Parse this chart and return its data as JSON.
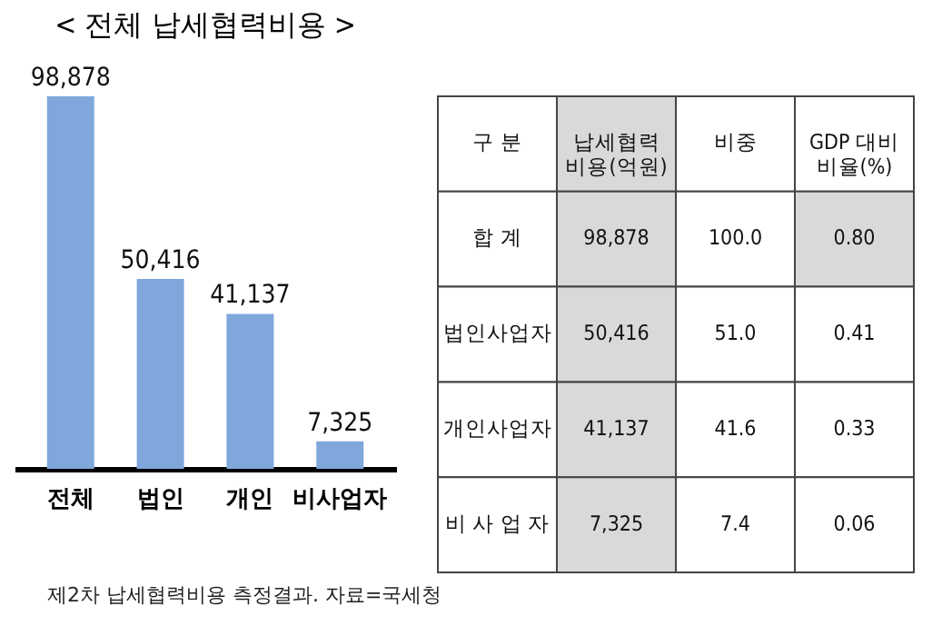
{
  "chart_data": [
    {
      "type": "bar",
      "title": "< 전체 납세협력비용 >",
      "categories": [
        "전체",
        "법인",
        "개인",
        "비사업자"
      ],
      "values": [
        98878,
        50416,
        41137,
        7325
      ],
      "color": "#7fa7dc",
      "value_labels": [
        "98,878",
        "50,416",
        "41,137",
        "7,325"
      ],
      "annotations": [
        "제2차 납세협력비용 측정결과. 자료=국세청"
      ]
    },
    {
      "type": "other",
      "annotations": [
        "구      분",
        "납세협력\n비용(억원)",
        "비중",
        "GDP 대비\n비율(%)",
        "합      계",
        "98,878",
        "100.0",
        "0.80",
        "법인사업자",
        "50,416",
        "51.0",
        "0.41",
        "개인사업자",
        "41,137",
        "41.6",
        "0.33",
        "비 사 업 자",
        "7,325",
        "7.4",
        "0.06"
      ]
    }
  ]
}
